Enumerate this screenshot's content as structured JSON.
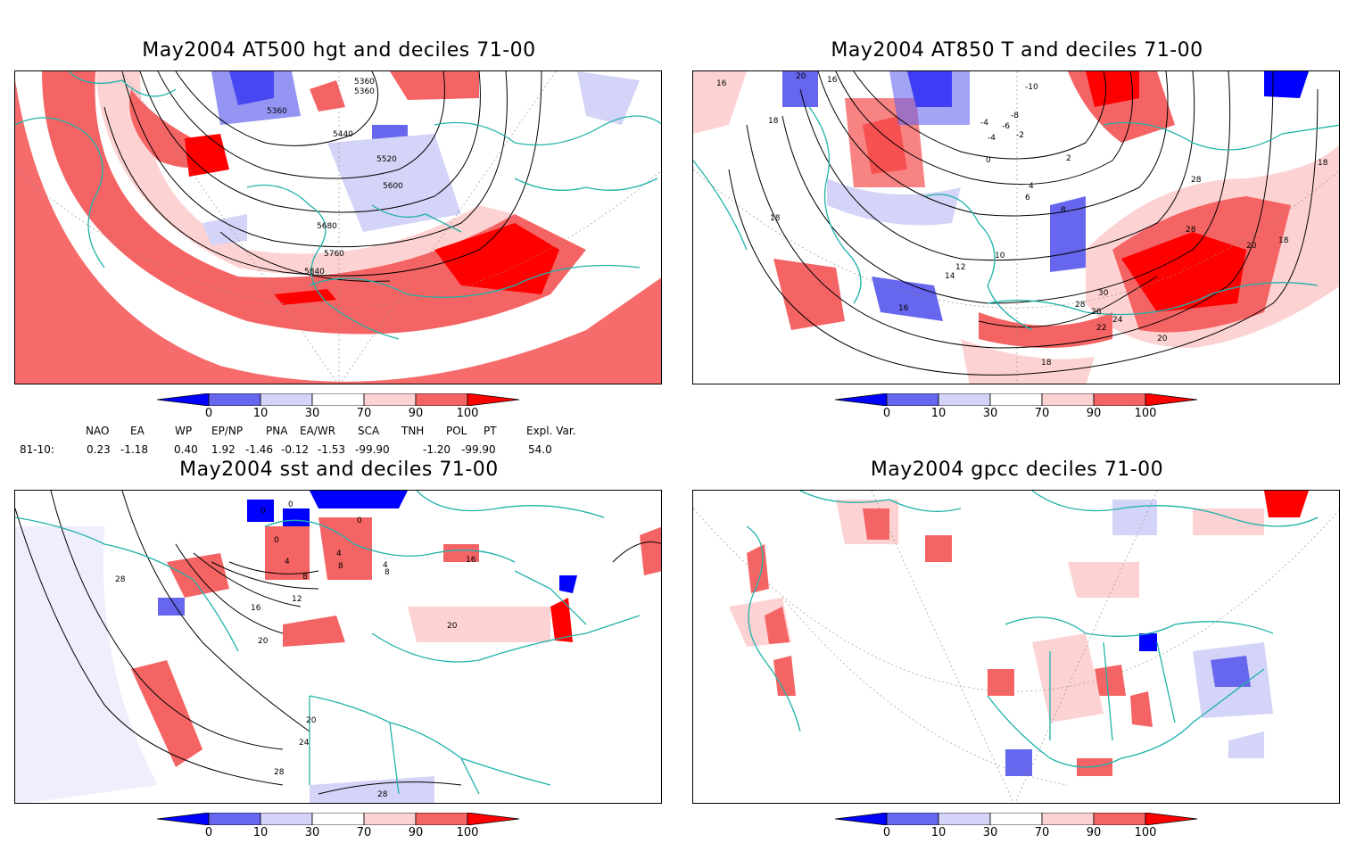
{
  "panels": [
    {
      "title": "May2004 AT500 hgt and deciles 71-00",
      "contour_labels": [
        "5360",
        "5360",
        "5360",
        "5440",
        "5520",
        "5600",
        "5680",
        "5760",
        "5840"
      ]
    },
    {
      "title": "May2004 AT850 T and deciles 71-00",
      "contour_labels": [
        "20",
        "16",
        "16",
        "18",
        "18",
        "-10",
        "-8",
        "-4",
        "-6",
        "-2",
        "-4",
        "0",
        "2",
        "4",
        "6",
        "8",
        "10",
        "12",
        "14",
        "16",
        "18",
        "20",
        "22",
        "24",
        "26",
        "28",
        "30",
        "28",
        "20",
        "18",
        "28",
        "18"
      ]
    },
    {
      "title": "May2004 sst and deciles 71-00",
      "contour_labels": [
        "0",
        "0",
        "0",
        "4",
        "4",
        "8",
        "8",
        "8",
        "12",
        "16",
        "20",
        "20",
        "24",
        "28",
        "28",
        "28",
        "16",
        "20",
        "0",
        "4"
      ]
    },
    {
      "title": "May2004 gpcc deciles 71-00",
      "contour_labels": []
    }
  ],
  "colorbar": {
    "ticks": [
      "0",
      "10",
      "30",
      "70",
      "90",
      "100"
    ],
    "colors": [
      "#0000ff",
      "#6666ee",
      "#d4d4f8",
      "#ffffff",
      "#fdd2d2",
      "#f56464",
      "#ff0000"
    ]
  },
  "indices": {
    "headers": [
      "NAO",
      "EA",
      "WP",
      "EP/NP",
      "PNA",
      "EA/WR",
      "SCA",
      "TNH",
      "POL",
      "PT",
      "Expl. Var."
    ],
    "row_label": "81-10:",
    "values": [
      "0.23",
      "-1.18",
      "0.40",
      "1.92",
      "-1.46",
      "-0.12",
      "-1.53",
      "-99.90",
      "-1.20",
      "-99.90",
      "54.0"
    ]
  }
}
